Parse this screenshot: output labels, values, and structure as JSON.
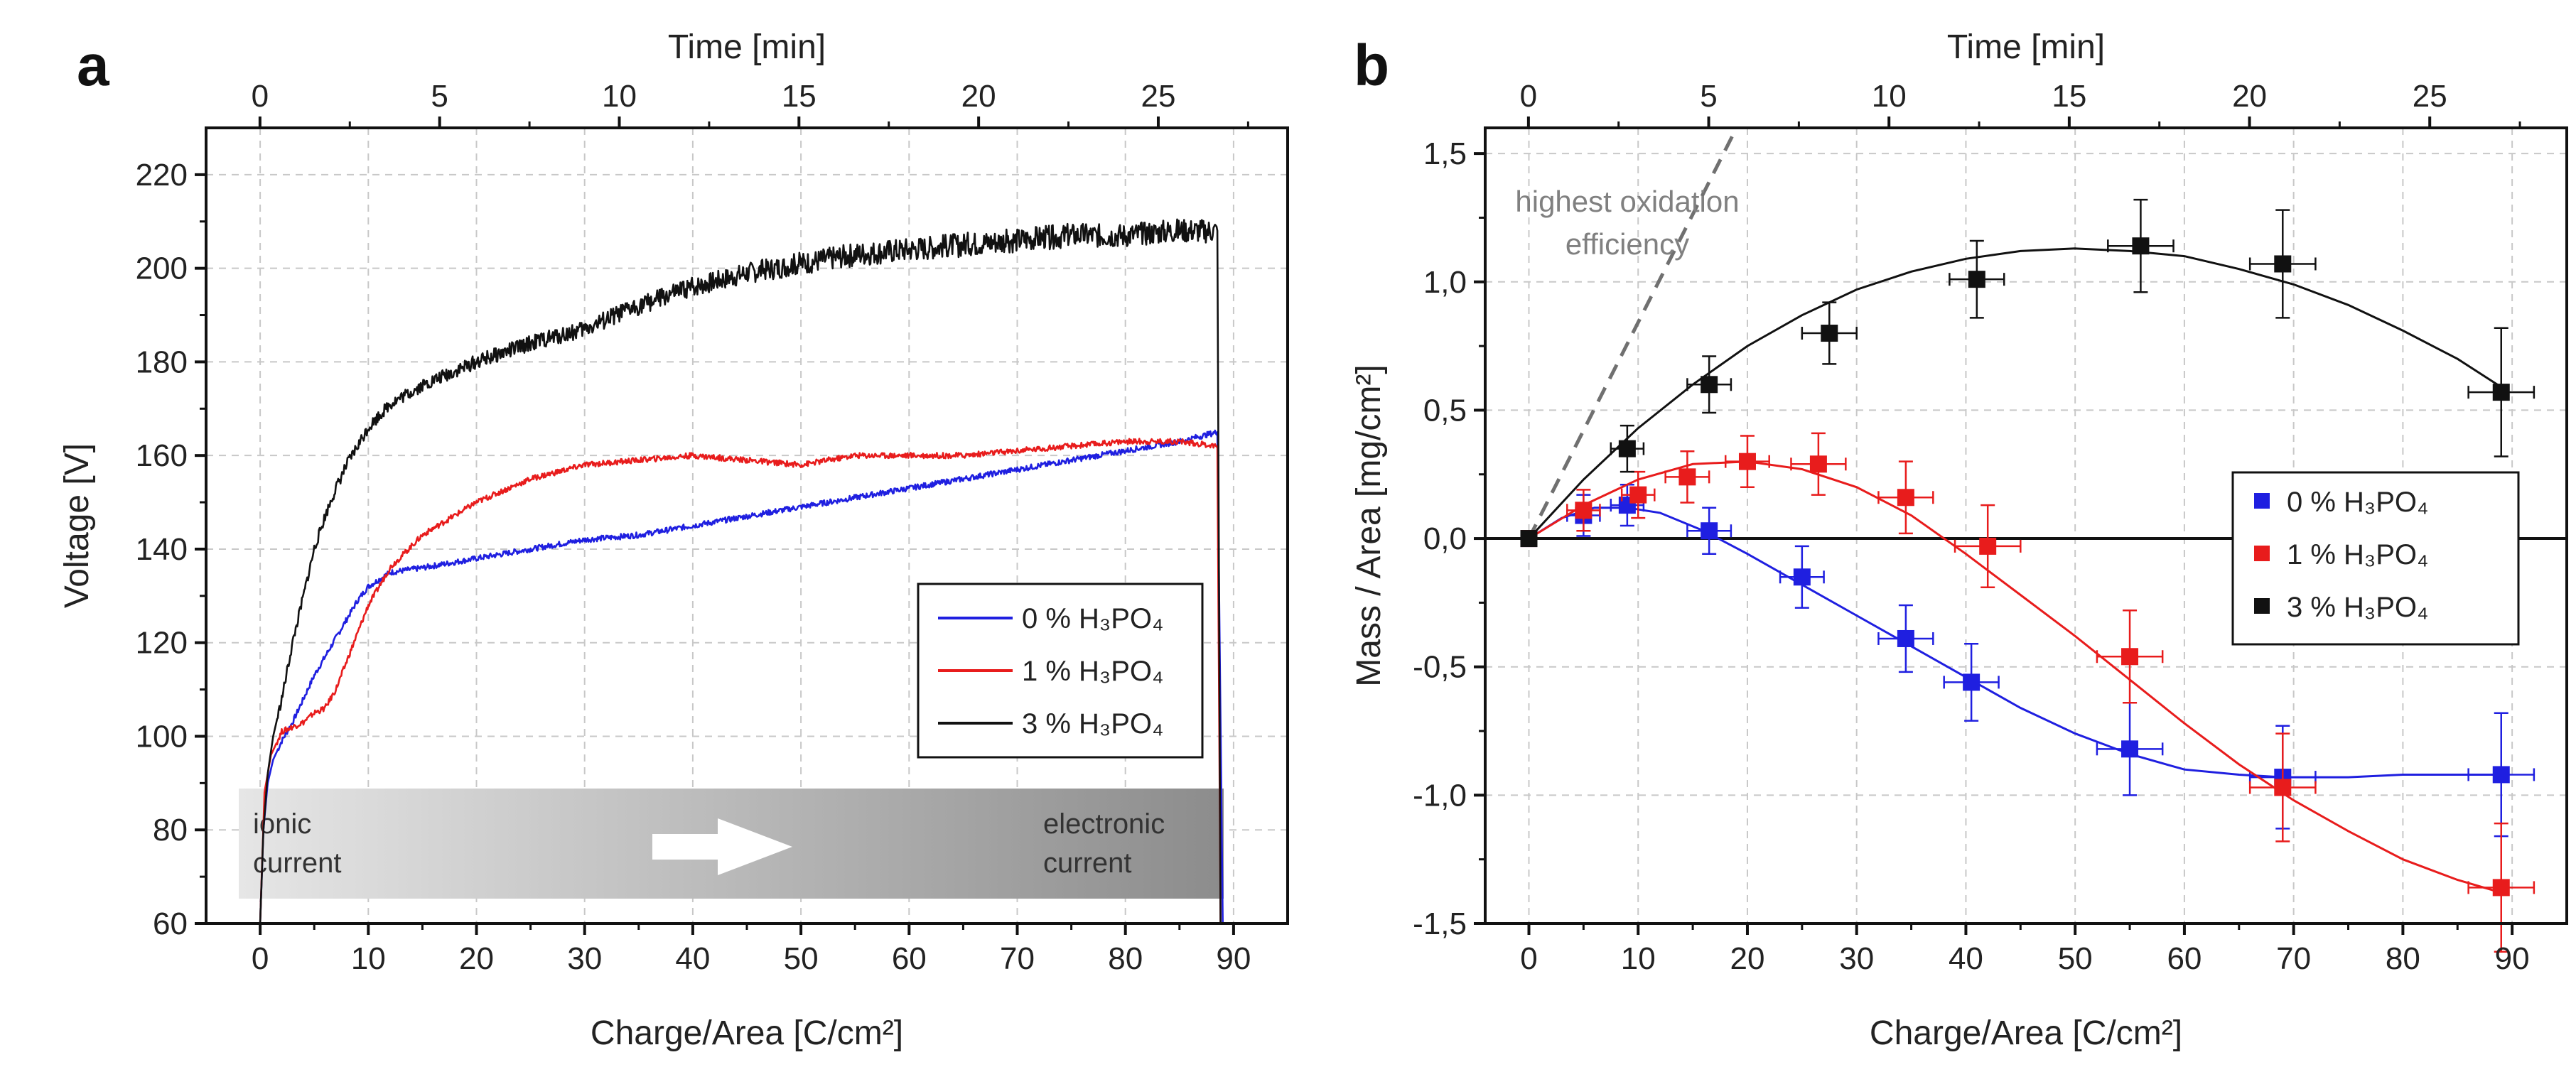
{
  "colors": {
    "blue": "#1f1fe0",
    "red": "#e81c1c",
    "black": "#111111",
    "gray": "#808080",
    "grid": "#c8c8c8"
  },
  "chart_data": [
    {
      "panel": "a",
      "type": "line",
      "xlabel": "Charge/Area [C/cm²]",
      "ylabel": "Voltage [V]",
      "x2label": "Time [min]",
      "xlim": [
        -5,
        95
      ],
      "ylim": [
        60,
        230
      ],
      "x2lim": [
        -1.5,
        28.6
      ],
      "xticks": [
        0,
        10,
        20,
        30,
        40,
        50,
        60,
        70,
        80,
        90
      ],
      "yticks": [
        60,
        80,
        100,
        120,
        140,
        160,
        180,
        200,
        220
      ],
      "x2ticks": [
        0,
        5,
        10,
        15,
        20,
        25
      ],
      "grid": true,
      "series": [
        {
          "name": "0 %",
          "color": "blue",
          "x": [
            0,
            0.3,
            0.7,
            1.2,
            2,
            3,
            4,
            5,
            6,
            7,
            8,
            9,
            10,
            12,
            15,
            20,
            25,
            30,
            35,
            40,
            45,
            50,
            55,
            60,
            65,
            70,
            75,
            80,
            85,
            88.5,
            89
          ],
          "y": [
            60,
            80,
            90,
            95,
            99,
            103,
            108,
            113,
            117,
            121,
            125,
            129,
            132,
            135,
            136,
            138,
            140,
            142,
            143,
            145,
            147,
            149,
            151,
            153,
            155,
            157,
            159,
            161,
            163,
            165,
            60
          ]
        },
        {
          "name": "1 %",
          "color": "red",
          "x": [
            0,
            0.4,
            1,
            2,
            3,
            4,
            5,
            6,
            7,
            8,
            9,
            10,
            12,
            15,
            20,
            25,
            30,
            35,
            40,
            45,
            50,
            55,
            60,
            65,
            70,
            75,
            80,
            85,
            88.5,
            88.8
          ],
          "y": [
            60,
            88,
            96,
            101,
            102,
            103,
            105,
            106,
            110,
            116,
            122,
            128,
            136,
            143,
            150,
            155,
            158,
            159,
            160,
            159,
            158,
            160,
            160,
            160,
            161,
            162,
            163,
            163,
            162,
            60
          ]
        },
        {
          "name": "3 %",
          "color": "black",
          "x": [
            0,
            0.3,
            0.7,
            1.2,
            2,
            3,
            4,
            5,
            6,
            7,
            8,
            9,
            10,
            12,
            15,
            20,
            25,
            30,
            35,
            40,
            45,
            50,
            55,
            60,
            65,
            70,
            75,
            80,
            85,
            88.5,
            88.8
          ],
          "y": [
            60,
            80,
            92,
            100,
            108,
            120,
            130,
            140,
            147,
            153,
            158,
            162,
            166,
            171,
            175,
            180,
            184,
            187,
            192,
            196,
            199,
            201,
            203,
            204,
            205,
            206,
            207,
            207,
            208,
            208,
            60
          ]
        }
      ],
      "legend": {
        "position": "right",
        "entries": [
          "0 %  H₃PO₄",
          "1 %  H₃PO₄",
          "3 %  H₃PO₄"
        ]
      },
      "band": {
        "x_start": 1,
        "x_end": 89,
        "y_low": 66,
        "y_high": 89,
        "left_label": [
          "ionic",
          "current"
        ],
        "right_label": [
          "electronic",
          "current"
        ]
      }
    },
    {
      "panel": "b",
      "type": "scatter",
      "xlabel": "Charge/Area [C/cm²]",
      "ylabel": "Mass / Area [mg/cm²]",
      "x2label": "Time [min]",
      "xlim": [
        -4,
        95
      ],
      "ylim": [
        -1.5,
        1.6
      ],
      "x2lim": [
        -1.2,
        28.8
      ],
      "xticks": [
        0,
        10,
        20,
        30,
        40,
        50,
        60,
        70,
        80,
        90
      ],
      "xtick_labels": [
        "0",
        "10",
        "20",
        "30",
        "40",
        "50",
        "60",
        "70",
        "80",
        "90"
      ],
      "yticks": [
        -1.5,
        -1.0,
        -0.5,
        0.0,
        0.5,
        1.0,
        1.5
      ],
      "ytick_labels": [
        "-1,5",
        "-1,0",
        "-0,5",
        "0,0",
        "0,5",
        "1,0",
        "1,5"
      ],
      "x2ticks": [
        0,
        5,
        10,
        15,
        20,
        25
      ],
      "grid": true,
      "series": [
        {
          "name": "0 %",
          "color": "blue",
          "x": [
            0,
            5,
            9,
            16.5,
            25,
            34.5,
            40.5,
            55,
            69,
            89
          ],
          "y": [
            0,
            0.09,
            0.13,
            0.03,
            -0.15,
            -0.39,
            -0.56,
            -0.82,
            -0.93,
            -0.92
          ],
          "yerr": [
            0,
            0.08,
            0.08,
            0.09,
            0.12,
            0.13,
            0.15,
            0.18,
            0.2,
            0.24
          ],
          "xerr": [
            0,
            1.5,
            1.5,
            2,
            2,
            2.5,
            2.5,
            3,
            3,
            3
          ],
          "fit_x": [
            0,
            3,
            6,
            9,
            12,
            16,
            20,
            25,
            30,
            35,
            40,
            45,
            50,
            55,
            60,
            65,
            69,
            75,
            80,
            89
          ],
          "fit_y": [
            0,
            0.08,
            0.12,
            0.12,
            0.1,
            0.03,
            -0.06,
            -0.18,
            -0.3,
            -0.42,
            -0.54,
            -0.66,
            -0.76,
            -0.84,
            -0.9,
            -0.92,
            -0.93,
            -0.93,
            -0.92,
            -0.92
          ]
        },
        {
          "name": "1 %",
          "color": "red",
          "x": [
            0,
            5,
            10,
            14.5,
            20,
            26.5,
            34.5,
            42,
            55,
            69,
            89
          ],
          "y": [
            0,
            0.11,
            0.17,
            0.24,
            0.3,
            0.29,
            0.16,
            -0.03,
            -0.46,
            -0.97,
            -1.36
          ],
          "yerr": [
            0,
            0.08,
            0.09,
            0.1,
            0.1,
            0.12,
            0.14,
            0.16,
            0.18,
            0.21,
            0.25
          ],
          "xerr": [
            0,
            1.5,
            1.5,
            2,
            2,
            2.5,
            2.5,
            3,
            3,
            3,
            3
          ],
          "fit_x": [
            0,
            5,
            10,
            15,
            20,
            25,
            30,
            35,
            40,
            45,
            50,
            55,
            60,
            65,
            70,
            75,
            80,
            85,
            89
          ],
          "fit_y": [
            0,
            0.13,
            0.23,
            0.29,
            0.3,
            0.27,
            0.2,
            0.09,
            -0.06,
            -0.22,
            -0.38,
            -0.55,
            -0.72,
            -0.88,
            -1.02,
            -1.14,
            -1.25,
            -1.33,
            -1.38
          ]
        },
        {
          "name": "3 %",
          "color": "black",
          "x": [
            0,
            9,
            16.5,
            27.5,
            41,
            56,
            69,
            89
          ],
          "y": [
            0,
            0.35,
            0.6,
            0.8,
            1.01,
            1.14,
            1.07,
            0.57
          ],
          "yerr": [
            0,
            0.09,
            0.11,
            0.12,
            0.15,
            0.18,
            0.21,
            0.25
          ],
          "xerr": [
            0,
            1.5,
            2,
            2.5,
            2.5,
            3,
            3,
            3
          ],
          "fit_x": [
            0,
            5,
            10,
            15,
            20,
            25,
            30,
            35,
            40,
            45,
            50,
            55,
            60,
            65,
            70,
            75,
            80,
            85,
            89
          ],
          "fit_y": [
            0,
            0.23,
            0.43,
            0.6,
            0.75,
            0.87,
            0.97,
            1.04,
            1.09,
            1.12,
            1.13,
            1.12,
            1.1,
            1.05,
            0.99,
            0.91,
            0.81,
            0.7,
            0.59
          ]
        }
      ],
      "reference_line": {
        "label": [
          "highest oxidation",
          "efficiency"
        ],
        "x": [
          0,
          19
        ],
        "y": [
          0,
          1.6
        ]
      },
      "legend": {
        "position": "right",
        "entries": [
          "0 %  H₃PO₄",
          "1 %  H₃PO₄",
          "3 %  H₃PO₄"
        ]
      }
    }
  ],
  "panel_labels": [
    "a",
    "b"
  ]
}
